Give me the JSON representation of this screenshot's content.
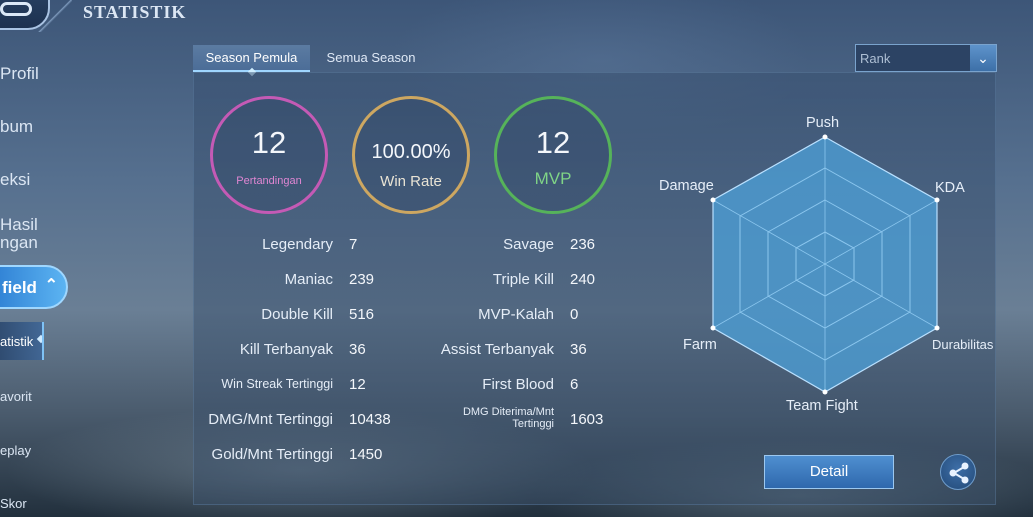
{
  "page": {
    "title": "STATISTIK"
  },
  "sidebar": {
    "items": [
      {
        "label": "Profil"
      },
      {
        "label": "bum"
      },
      {
        "label": "eksi"
      },
      {
        "label": "Hasil"
      },
      {
        "label": "ngan"
      },
      {
        "label": "field"
      },
      {
        "label": "atistik"
      },
      {
        "label": "avorit"
      },
      {
        "label": "eplay"
      },
      {
        "label": "Skor"
      }
    ]
  },
  "tabs": [
    {
      "label": "Season Pemula"
    },
    {
      "label": "Semua Season"
    }
  ],
  "dropdown": {
    "selected": "Rank"
  },
  "summary": {
    "matches": {
      "value": "12",
      "label": "Pertandingan"
    },
    "winrate": {
      "value": "100.00%",
      "label": "Win Rate"
    },
    "mvp": {
      "value": "12",
      "label": "MVP"
    }
  },
  "stats_left": [
    {
      "label": "Legendary",
      "value": "7"
    },
    {
      "label": "Maniac",
      "value": "239"
    },
    {
      "label": "Double Kill",
      "value": "516"
    },
    {
      "label": "Kill Terbanyak",
      "value": "36"
    },
    {
      "label": "Win Streak Tertinggi",
      "value": "12"
    },
    {
      "label": "DMG/Mnt Tertinggi",
      "value": "10438"
    },
    {
      "label": "Gold/Mnt Tertinggi",
      "value": "1450"
    }
  ],
  "stats_right": [
    {
      "label": "Savage",
      "value": "236"
    },
    {
      "label": "Triple Kill",
      "value": "240"
    },
    {
      "label": "MVP-Kalah",
      "value": "0"
    },
    {
      "label": "Assist Terbanyak",
      "value": "36"
    },
    {
      "label": "First Blood",
      "value": "6"
    },
    {
      "label": "DMG Diterima/Mnt Tertinggi",
      "value": "1603"
    }
  ],
  "radar": {
    "labels": {
      "push": "Push",
      "kda": "KDA",
      "durability": "Durabilitas",
      "teamfight": "Team Fight",
      "farm": "Farm",
      "damage": "Damage"
    }
  },
  "buttons": {
    "detail": "Detail"
  },
  "colors": {
    "matches_ring": "#c45ab5",
    "winrate_ring": "#cda761",
    "mvp_ring": "#56b35a",
    "radar_fill": "#4d9fd6"
  }
}
